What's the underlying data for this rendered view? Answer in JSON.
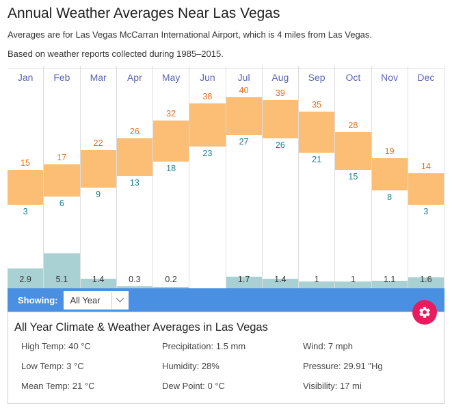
{
  "page": {
    "title": "Annual Weather Averages Near Las Vegas",
    "subtitle1": "Averages are for Las Vegas McCarran International Airport, which is 4 miles from Las Vegas.",
    "subtitle2": "Based on weather reports collected during 1985–2015."
  },
  "chart_data": {
    "type": "bar",
    "title": "Monthly climate averages for Las Vegas",
    "categories": [
      "Jan",
      "Feb",
      "Mar",
      "Apr",
      "May",
      "Jun",
      "Jul",
      "Aug",
      "Sep",
      "Oct",
      "Nov",
      "Dec"
    ],
    "series": [
      {
        "name": "High Temp (°C)",
        "values": [
          15,
          17,
          22,
          26,
          32,
          38,
          40,
          39,
          35,
          28,
          19,
          14
        ],
        "label_color": "#e0701e"
      },
      {
        "name": "Low Temp (°C)",
        "values": [
          3,
          6,
          9,
          13,
          18,
          23,
          27,
          26,
          21,
          15,
          8,
          3
        ],
        "label_color": "#17808e"
      },
      {
        "name": "Precipitation",
        "values": [
          2.9,
          5.1,
          1.4,
          0.3,
          0.2,
          null,
          1.7,
          1.4,
          1,
          1,
          1.1,
          1.6
        ],
        "label_color": "#333333"
      }
    ],
    "precip_display": [
      "2.9",
      "5.1",
      "1.4",
      "0.3",
      "0.2",
      "",
      "1.7",
      "1.4",
      "1",
      "1",
      "1.1",
      "1.6"
    ],
    "legend_position": "none",
    "grid": "column-separators",
    "colors": {
      "temp_range_bar": "#fbbe74",
      "precip_bar": "#a9d0d2",
      "month_label": "#5a64b4",
      "accent_blue": "#4a90e2",
      "gear_pink": "#eb1a5f"
    }
  },
  "showing": {
    "label": "Showing:",
    "selected": "All Year"
  },
  "summary": {
    "title": "All Year Climate & Weather Averages in Las Vegas",
    "columns": [
      [
        {
          "label": "High Temp",
          "value": "40 °C"
        },
        {
          "label": "Low Temp",
          "value": "3 °C"
        },
        {
          "label": "Mean Temp",
          "value": "21 °C"
        }
      ],
      [
        {
          "label": "Precipitation",
          "value": "1.5 mm"
        },
        {
          "label": "Humidity",
          "value": "28%"
        },
        {
          "label": "Dew Point",
          "value": "0 °C"
        }
      ],
      [
        {
          "label": "Wind",
          "value": "7 mph"
        },
        {
          "label": "Pressure",
          "value": "29.91 \"Hg"
        },
        {
          "label": "Visibility",
          "value": "17 mi"
        }
      ]
    ]
  }
}
